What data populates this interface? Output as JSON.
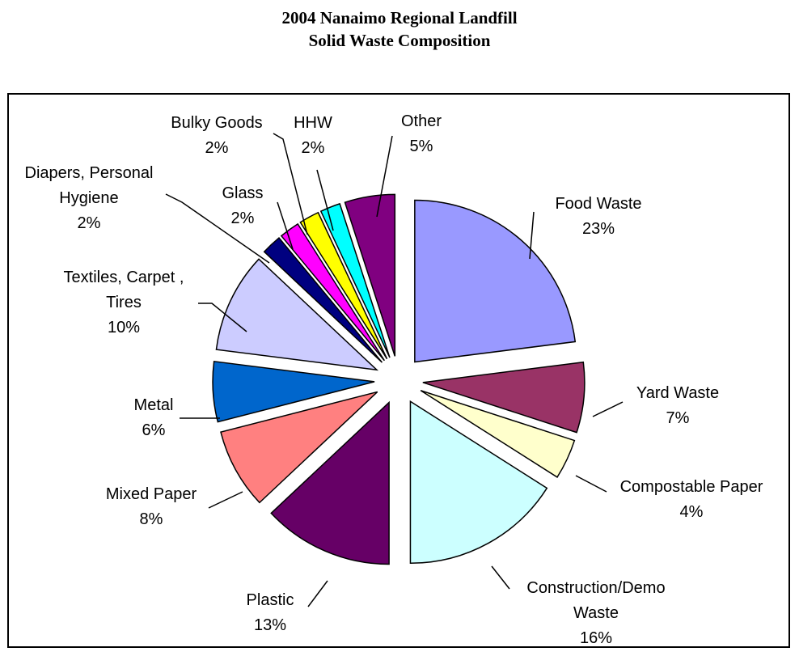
{
  "title_line1": "2004 Nanaimo Regional Landfill",
  "title_line2": "Solid Waste Composition",
  "chart_data": {
    "type": "pie",
    "title": "2004 Nanaimo Regional Landfill Solid Waste Composition",
    "legend": "none",
    "slices": [
      {
        "lines": [
          "Food Waste",
          "23%"
        ],
        "value": 23,
        "color": "#9999ff"
      },
      {
        "lines": [
          "Yard Waste",
          "7%"
        ],
        "value": 7,
        "color": "#993366"
      },
      {
        "lines": [
          "Compostable Paper",
          "4%"
        ],
        "value": 4,
        "color": "#ffffcc"
      },
      {
        "lines": [
          "Construction/Demo",
          "Waste",
          "16%"
        ],
        "value": 16,
        "color": "#ccffff"
      },
      {
        "lines": [
          "Plastic",
          "13%"
        ],
        "value": 13,
        "color": "#660066"
      },
      {
        "lines": [
          "Mixed Paper",
          "8%"
        ],
        "value": 8,
        "color": "#ff8080"
      },
      {
        "lines": [
          "Metal",
          "6%"
        ],
        "value": 6,
        "color": "#0066cc"
      },
      {
        "lines": [
          "Textiles, Carpet ,",
          "Tires",
          "10%"
        ],
        "value": 10,
        "color": "#ccccff"
      },
      {
        "lines": [
          "Diapers, Personal",
          "Hygiene",
          "2%"
        ],
        "value": 2,
        "color": "#000080"
      },
      {
        "lines": [
          "Glass",
          "2%"
        ],
        "value": 2,
        "color": "#ff00ff"
      },
      {
        "lines": [
          "Bulky Goods",
          "2%"
        ],
        "value": 2,
        "color": "#ffff00"
      },
      {
        "lines": [
          "HHW",
          "2%"
        ],
        "value": 2,
        "color": "#00ffff"
      },
      {
        "lines": [
          "Other",
          "5%"
        ],
        "value": 5,
        "color": "#800080"
      }
    ]
  }
}
